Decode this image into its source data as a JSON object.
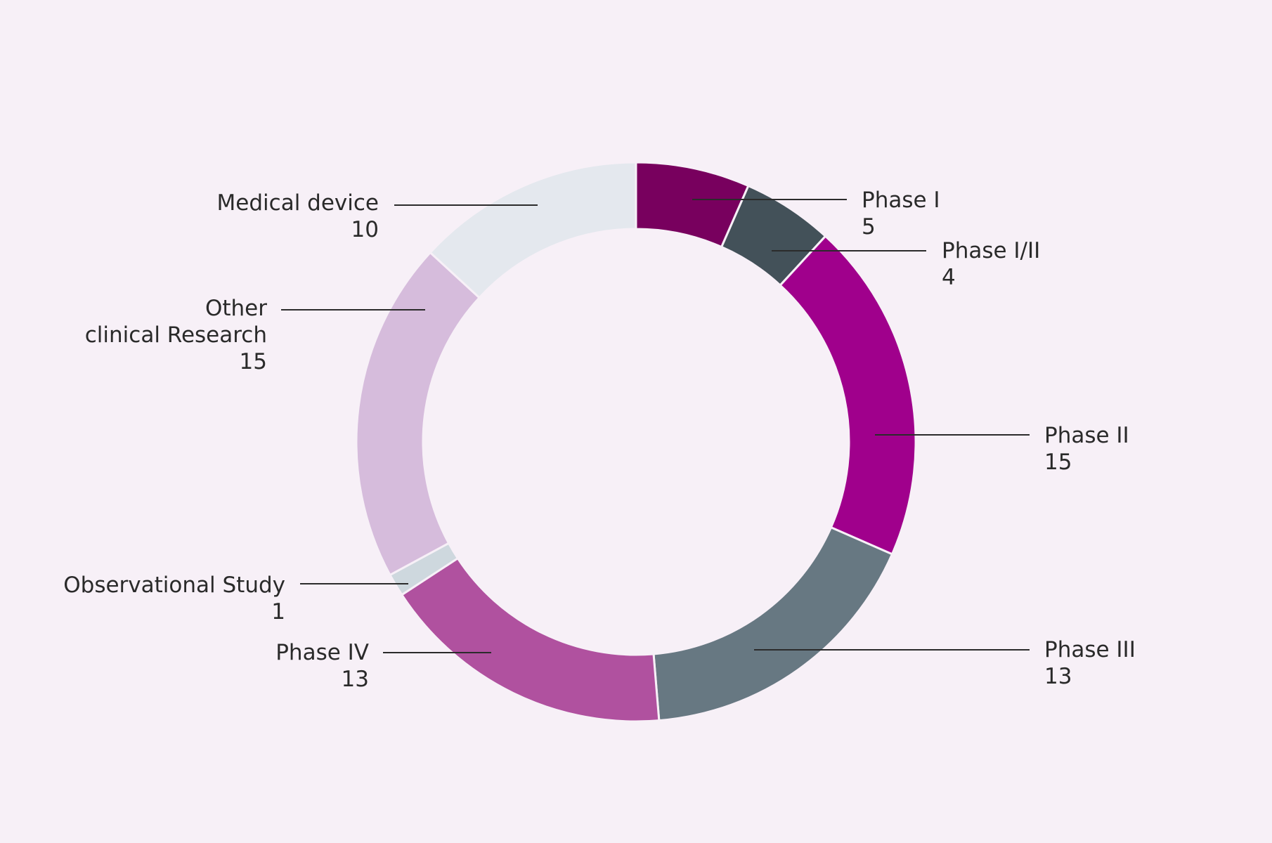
{
  "chart_data": {
    "type": "pie",
    "variant": "donut",
    "title": "",
    "slices": [
      {
        "label": "Phase I",
        "label_lines": [
          "Phase I"
        ],
        "value": 5,
        "color": "#78005e",
        "label_side": "right"
      },
      {
        "label": "Phase I/II",
        "label_lines": [
          "Phase I/II"
        ],
        "value": 4,
        "color": "#435159",
        "label_side": "right"
      },
      {
        "label": "Phase II",
        "label_lines": [
          "Phase II"
        ],
        "value": 15,
        "color": "#a0008c",
        "label_side": "right"
      },
      {
        "label": "Phase III",
        "label_lines": [
          "Phase III"
        ],
        "value": 13,
        "color": "#677882",
        "label_side": "right"
      },
      {
        "label": "Phase IV",
        "label_lines": [
          "Phase IV"
        ],
        "value": 13,
        "color": "#b0519f",
        "label_side": "left"
      },
      {
        "label": "Observational Study",
        "label_lines": [
          "Observational Study"
        ],
        "value": 1,
        "color": "#ced8de",
        "label_side": "left"
      },
      {
        "label": "Other clinical Research",
        "label_lines": [
          "Other",
          "clinical Research"
        ],
        "value": 15,
        "color": "#d6bcdc",
        "label_side": "left"
      },
      {
        "label": "Medical device",
        "label_lines": [
          "Medical device"
        ],
        "value": 10,
        "color": "#e4e8ee",
        "label_side": "left"
      }
    ],
    "start_angle": "12 o'clock",
    "direction": "clockwise",
    "legend": "none (direct labels with leader lines)"
  }
}
